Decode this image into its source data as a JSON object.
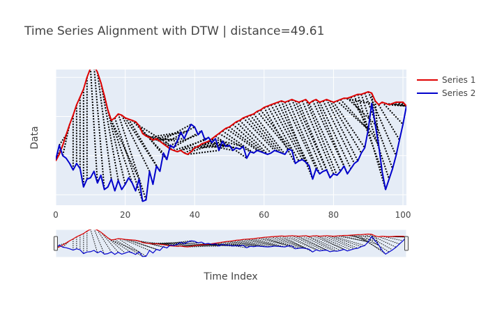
{
  "chart_data": {
    "type": "line",
    "title": "Time Series Alignment with DTW | distance=49.61",
    "xlabel": "Time Index",
    "ylabel": "Data",
    "xlim": [
      0,
      101
    ],
    "ylim": [
      -1.9,
      3.3
    ],
    "xticks": [
      0,
      20,
      40,
      60,
      80,
      100
    ],
    "yticks": [
      -1.5,
      0,
      1.5,
      3
    ],
    "grid": true,
    "legend": "top-right",
    "rangeslider": true,
    "series": [
      {
        "name": "Series 1",
        "color": "#e00000",
        "x": [
          0,
          1,
          2,
          3,
          4,
          5,
          6,
          7,
          8,
          9,
          10,
          11,
          12,
          13,
          14,
          15,
          16,
          17,
          18,
          19,
          20,
          21,
          22,
          23,
          24,
          25,
          26,
          27,
          28,
          29,
          30,
          31,
          32,
          33,
          34,
          35,
          36,
          37,
          38,
          39,
          40,
          41,
          42,
          43,
          44,
          45,
          46,
          47,
          48,
          49,
          50,
          51,
          52,
          53,
          54,
          55,
          56,
          57,
          58,
          59,
          60,
          61,
          62,
          63,
          64,
          65,
          66,
          67,
          68,
          69,
          70,
          71,
          72,
          73,
          74,
          75,
          76,
          77,
          78,
          79,
          80,
          81,
          82,
          83,
          84,
          85,
          86,
          87,
          88,
          89,
          90,
          91,
          92,
          93,
          94,
          95,
          96,
          97,
          98,
          99,
          100,
          101
        ],
        "values": [
          -0.2,
          0.05,
          0.4,
          0.8,
          1.2,
          1.55,
          1.95,
          2.25,
          2.55,
          3.0,
          3.35,
          3.45,
          3.2,
          2.8,
          2.3,
          1.75,
          1.35,
          1.45,
          1.6,
          1.55,
          1.45,
          1.4,
          1.35,
          1.3,
          1.15,
          0.85,
          0.75,
          0.7,
          0.6,
          0.65,
          0.55,
          0.45,
          0.35,
          0.25,
          0.2,
          0.15,
          0.2,
          0.1,
          0.05,
          0.15,
          0.3,
          0.35,
          0.45,
          0.5,
          0.55,
          0.65,
          0.75,
          0.85,
          0.95,
          1.05,
          1.1,
          1.2,
          1.3,
          1.35,
          1.45,
          1.5,
          1.55,
          1.6,
          1.7,
          1.75,
          1.85,
          1.9,
          1.95,
          2.0,
          2.05,
          2.1,
          2.05,
          2.1,
          2.15,
          2.1,
          2.05,
          2.1,
          2.15,
          2.0,
          2.1,
          2.15,
          2.05,
          2.1,
          2.15,
          2.1,
          2.05,
          2.1,
          2.15,
          2.2,
          2.2,
          2.25,
          2.3,
          2.35,
          2.35,
          2.4,
          2.45,
          2.4,
          2.1,
          1.95,
          2.05,
          2.0,
          1.95,
          2.0,
          2.05,
          2.05,
          2.05,
          1.9
        ]
      },
      {
        "name": "Series 2",
        "color": "#0000cc",
        "x": [
          0,
          1,
          2,
          3,
          4,
          5,
          6,
          7,
          8,
          9,
          10,
          11,
          12,
          13,
          14,
          15,
          16,
          17,
          18,
          19,
          20,
          21,
          22,
          23,
          24,
          25,
          26,
          27,
          28,
          29,
          30,
          31,
          32,
          33,
          34,
          35,
          36,
          37,
          38,
          39,
          40,
          41,
          42,
          43,
          44,
          45,
          46,
          47,
          48,
          49,
          50,
          51,
          52,
          53,
          54,
          55,
          56,
          57,
          58,
          59,
          60,
          61,
          62,
          63,
          64,
          65,
          66,
          67,
          68,
          69,
          70,
          71,
          72,
          73,
          74,
          75,
          76,
          77,
          78,
          79,
          80,
          81,
          82,
          83,
          84,
          85,
          86,
          87,
          88,
          89,
          90,
          91,
          92,
          93,
          94,
          95,
          96,
          97,
          98,
          99,
          100,
          101
        ],
        "values": [
          -0.15,
          0.4,
          0.0,
          -0.1,
          -0.3,
          -0.55,
          -0.3,
          -0.5,
          -1.2,
          -0.9,
          -0.85,
          -0.6,
          -1.05,
          -0.75,
          -1.3,
          -1.2,
          -0.9,
          -1.35,
          -0.95,
          -1.3,
          -1.1,
          -0.85,
          -1.05,
          -1.35,
          -0.9,
          -1.75,
          -1.7,
          -0.6,
          -1.1,
          -0.4,
          -0.6,
          0.1,
          -0.15,
          0.4,
          0.3,
          0.55,
          0.9,
          0.65,
          0.95,
          1.2,
          1.1,
          0.8,
          0.95,
          0.6,
          0.7,
          0.5,
          0.65,
          0.2,
          0.55,
          0.35,
          0.4,
          0.2,
          0.3,
          0.25,
          0.35,
          -0.1,
          0.15,
          0.1,
          0.2,
          0.15,
          0.1,
          0.05,
          0.1,
          0.2,
          0.15,
          0.1,
          0.05,
          0.25,
          0.2,
          -0.3,
          -0.2,
          -0.15,
          -0.25,
          -0.4,
          -0.9,
          -0.5,
          -0.7,
          -0.6,
          -0.55,
          -0.85,
          -0.7,
          -0.75,
          -0.6,
          -0.4,
          -0.7,
          -0.5,
          -0.3,
          -0.2,
          0.1,
          0.3,
          1.0,
          2.0,
          1.2,
          0.4,
          -0.6,
          -1.3,
          -0.9,
          -0.5,
          0.0,
          0.6,
          1.2,
          1.9
        ]
      }
    ],
    "warping_path": [
      [
        0,
        0
      ],
      [
        1,
        0
      ],
      [
        2,
        0
      ],
      [
        3,
        1
      ],
      [
        4,
        2
      ],
      [
        5,
        5
      ],
      [
        6,
        6
      ],
      [
        7,
        7
      ],
      [
        8,
        8
      ],
      [
        9,
        9
      ],
      [
        10,
        12
      ],
      [
        11,
        14
      ],
      [
        12,
        16
      ],
      [
        13,
        18
      ],
      [
        14,
        20
      ],
      [
        15,
        22
      ],
      [
        16,
        24
      ],
      [
        17,
        25
      ],
      [
        18,
        26
      ],
      [
        19,
        27
      ],
      [
        20,
        29
      ],
      [
        21,
        30
      ],
      [
        22,
        31
      ],
      [
        23,
        32
      ],
      [
        24,
        33
      ],
      [
        25,
        34
      ],
      [
        26,
        35
      ],
      [
        27,
        36
      ],
      [
        28,
        37
      ],
      [
        29,
        38
      ],
      [
        30,
        39
      ],
      [
        31,
        40
      ],
      [
        32,
        41
      ],
      [
        33,
        42
      ],
      [
        34,
        43
      ],
      [
        35,
        44
      ],
      [
        36,
        45
      ],
      [
        37,
        46
      ],
      [
        38,
        47
      ],
      [
        39,
        48
      ],
      [
        40,
        49
      ],
      [
        41,
        50
      ],
      [
        42,
        51
      ],
      [
        43,
        52
      ],
      [
        44,
        53
      ],
      [
        45,
        54
      ],
      [
        46,
        55
      ],
      [
        47,
        56
      ],
      [
        48,
        57
      ],
      [
        49,
        58
      ],
      [
        50,
        59
      ],
      [
        51,
        60
      ],
      [
        52,
        61
      ],
      [
        53,
        62
      ],
      [
        54,
        63
      ],
      [
        55,
        64
      ],
      [
        56,
        65
      ],
      [
        57,
        66
      ],
      [
        58,
        67
      ],
      [
        59,
        68
      ],
      [
        60,
        69
      ],
      [
        61,
        70
      ],
      [
        62,
        71
      ],
      [
        63,
        72
      ],
      [
        64,
        73
      ],
      [
        65,
        74
      ],
      [
        66,
        75
      ],
      [
        67,
        76
      ],
      [
        68,
        77
      ],
      [
        69,
        78
      ],
      [
        70,
        79
      ],
      [
        71,
        80
      ],
      [
        72,
        81
      ],
      [
        73,
        82
      ],
      [
        74,
        83
      ],
      [
        75,
        84
      ],
      [
        76,
        85
      ],
      [
        77,
        86
      ],
      [
        78,
        87
      ],
      [
        79,
        88
      ],
      [
        80,
        89
      ],
      [
        81,
        90
      ],
      [
        82,
        90
      ],
      [
        83,
        91
      ],
      [
        84,
        92
      ],
      [
        85,
        93
      ],
      [
        86,
        94
      ],
      [
        87,
        95
      ],
      [
        88,
        96
      ],
      [
        89,
        97
      ],
      [
        90,
        98
      ],
      [
        91,
        92
      ],
      [
        92,
        93
      ],
      [
        93,
        99
      ],
      [
        94,
        100
      ],
      [
        95,
        101
      ],
      [
        96,
        101
      ],
      [
        97,
        101
      ],
      [
        98,
        101
      ],
      [
        99,
        101
      ],
      [
        100,
        101
      ],
      [
        101,
        101
      ]
    ]
  }
}
